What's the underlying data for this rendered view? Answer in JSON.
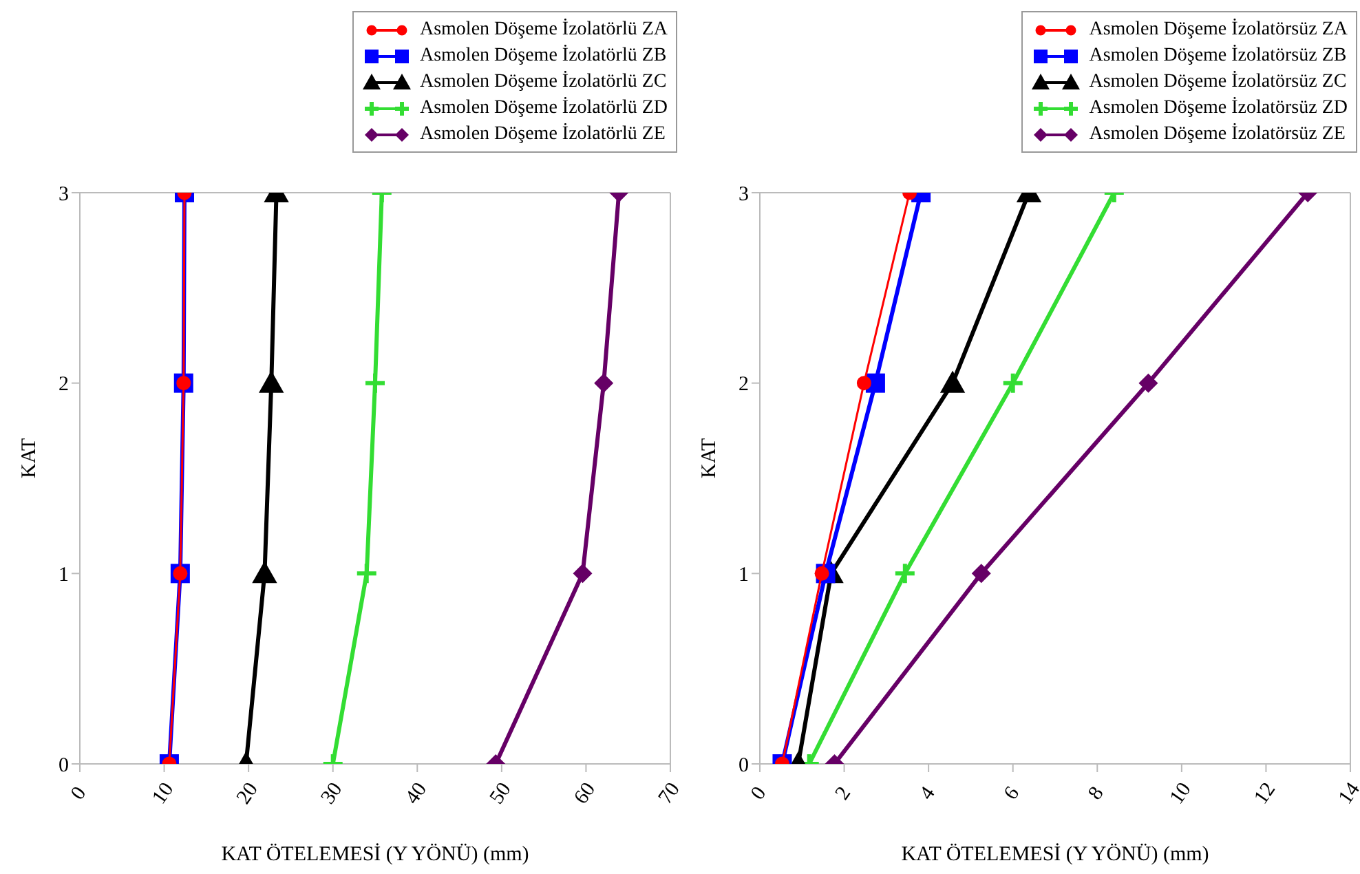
{
  "chart_data": [
    {
      "type": "line",
      "xlabel": "KAT ÖTELEMESİ (Y YÖNÜ) (mm)",
      "ylabel": "KAT",
      "xlim": [
        0,
        70
      ],
      "xticks": [
        0,
        10,
        20,
        30,
        40,
        50,
        60,
        70
      ],
      "ylim": [
        0,
        3
      ],
      "yticks": [
        0,
        1,
        2,
        3
      ],
      "grid": false,
      "legend": "top right",
      "series": [
        {
          "name": "Asmolen Döşeme İzolatörlü ZA",
          "color": "#ff0000",
          "marker": "circle",
          "x": [
            10.6,
            11.9,
            12.3,
            12.4
          ],
          "values": [
            0,
            1,
            2,
            3
          ]
        },
        {
          "name": "Asmolen Döşeme İzolatörlü ZB",
          "color": "#0000ff",
          "marker": "square",
          "x": [
            10.6,
            11.9,
            12.3,
            12.4
          ],
          "values": [
            0,
            1,
            2,
            3
          ]
        },
        {
          "name": "Asmolen Döşeme İzolatörlü ZC",
          "color": "#000000",
          "marker": "triangle",
          "x": [
            19.7,
            21.9,
            22.7,
            23.3
          ],
          "values": [
            0,
            1,
            2,
            3
          ]
        },
        {
          "name": "Asmolen Döşeme İzolatörlü ZD",
          "color": "#33dd33",
          "marker": "cross",
          "x": [
            30.0,
            34.0,
            35.0,
            35.8
          ],
          "values": [
            0,
            1,
            2,
            3
          ]
        },
        {
          "name": "Asmolen Döşeme İzolatörlü ZE",
          "color": "#660066",
          "marker": "diamond",
          "x": [
            49.3,
            59.6,
            62.1,
            63.9
          ],
          "values": [
            0,
            1,
            2,
            3
          ]
        }
      ]
    },
    {
      "type": "line",
      "xlabel": "KAT ÖTELEMESİ (Y YÖNÜ) (mm)",
      "ylabel": "KAT",
      "xlim": [
        0,
        14
      ],
      "xticks": [
        0,
        2,
        4,
        6,
        8,
        10,
        12,
        14
      ],
      "ylim": [
        0,
        3
      ],
      "yticks": [
        0,
        1,
        2,
        3
      ],
      "grid": false,
      "legend": "top right",
      "series": [
        {
          "name": "Asmolen Döşeme İzolatörsüz ZA",
          "color": "#ff0000",
          "marker": "circle",
          "x": [
            0.53,
            1.47,
            2.47,
            3.55
          ],
          "values": [
            0,
            1,
            2,
            3
          ]
        },
        {
          "name": "Asmolen Döşeme İzolatörsüz ZB",
          "color": "#0000ff",
          "marker": "square",
          "x": [
            0.53,
            1.56,
            2.74,
            3.82
          ],
          "values": [
            0,
            1,
            2,
            3
          ]
        },
        {
          "name": "Asmolen Döşeme İzolatörsüz ZC",
          "color": "#000000",
          "marker": "triangle",
          "x": [
            0.91,
            1.69,
            4.57,
            6.38
          ],
          "values": [
            0,
            1,
            2,
            3
          ]
        },
        {
          "name": "Asmolen Döşeme İzolatörsüz ZD",
          "color": "#33dd33",
          "marker": "cross",
          "x": [
            1.17,
            3.44,
            6.0,
            8.4
          ],
          "values": [
            0,
            1,
            2,
            3
          ]
        },
        {
          "name": "Asmolen Döşeme İzolatörsüz ZE",
          "color": "#660066",
          "marker": "diamond",
          "x": [
            1.77,
            5.25,
            9.21,
            12.99
          ],
          "values": [
            0,
            1,
            2,
            3
          ]
        }
      ]
    }
  ]
}
